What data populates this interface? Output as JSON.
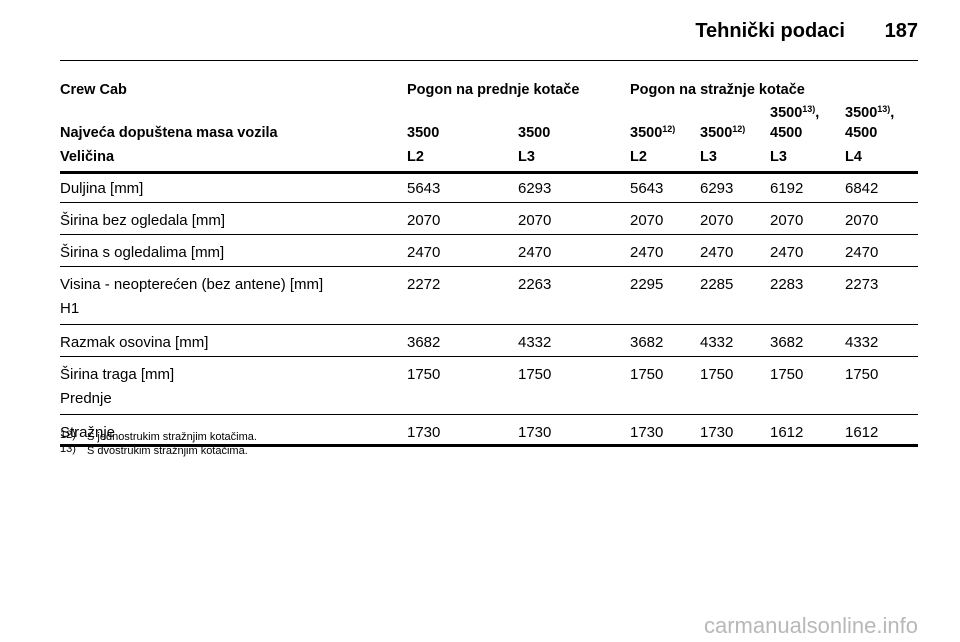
{
  "header": {
    "title": "Tehnički podaci",
    "page": "187"
  },
  "table": {
    "group_row": {
      "label": "Crew Cab",
      "groups": [
        "Pogon na prednje kotače",
        "Pogon na stražnje kotače"
      ]
    },
    "mass_row": {
      "label": "Najveća dopuštena masa vozila",
      "cells": [
        {
          "text": "3500"
        },
        {
          "text": "3500"
        },
        {
          "text": "3500",
          "sup": "12)"
        },
        {
          "text": "3500",
          "sup": "12)"
        },
        {
          "text": "3500",
          "sup": "13)",
          "after": ",",
          "line2": "4500"
        },
        {
          "text": "3500",
          "sup": "13)",
          "after": ",",
          "line2": "4500"
        }
      ]
    },
    "size_row": {
      "label": "Veličina",
      "cells": [
        "L2",
        "L3",
        "L2",
        "L3",
        "L3",
        "L4"
      ]
    },
    "rows": [
      {
        "label": [
          "Duljina [mm]"
        ],
        "values": [
          "5643",
          "6293",
          "5643",
          "6293",
          "6192",
          "6842"
        ]
      },
      {
        "label": [
          "Širina bez ogledala [mm]"
        ],
        "values": [
          "2070",
          "2070",
          "2070",
          "2070",
          "2070",
          "2070"
        ]
      },
      {
        "label": [
          "Širina s ogledalima [mm]"
        ],
        "values": [
          "2470",
          "2470",
          "2470",
          "2470",
          "2470",
          "2470"
        ]
      },
      {
        "label": [
          "Visina - neopterećen (bez antene) [mm]",
          "H1"
        ],
        "values": [
          "2272",
          "2263",
          "2295",
          "2285",
          "2283",
          "2273"
        ]
      },
      {
        "label": [
          "Razmak osovina [mm]"
        ],
        "values": [
          "3682",
          "4332",
          "3682",
          "4332",
          "3682",
          "4332"
        ]
      },
      {
        "label": [
          "Širina traga [mm]",
          "Prednje"
        ],
        "values": [
          "1750",
          "1750",
          "1750",
          "1750",
          "1750",
          "1750"
        ]
      },
      {
        "label": [
          "Stražnje"
        ],
        "values": [
          "1730",
          "1730",
          "1730",
          "1730",
          "1612",
          "1612"
        ]
      }
    ]
  },
  "footnotes": [
    {
      "mark": "12)",
      "text": "S jednostrukim stražnjim kotačima."
    },
    {
      "mark": "13)",
      "text": "S dvostrukim stražnjim kotačima."
    }
  ],
  "watermark": "carmanualsonline.info"
}
